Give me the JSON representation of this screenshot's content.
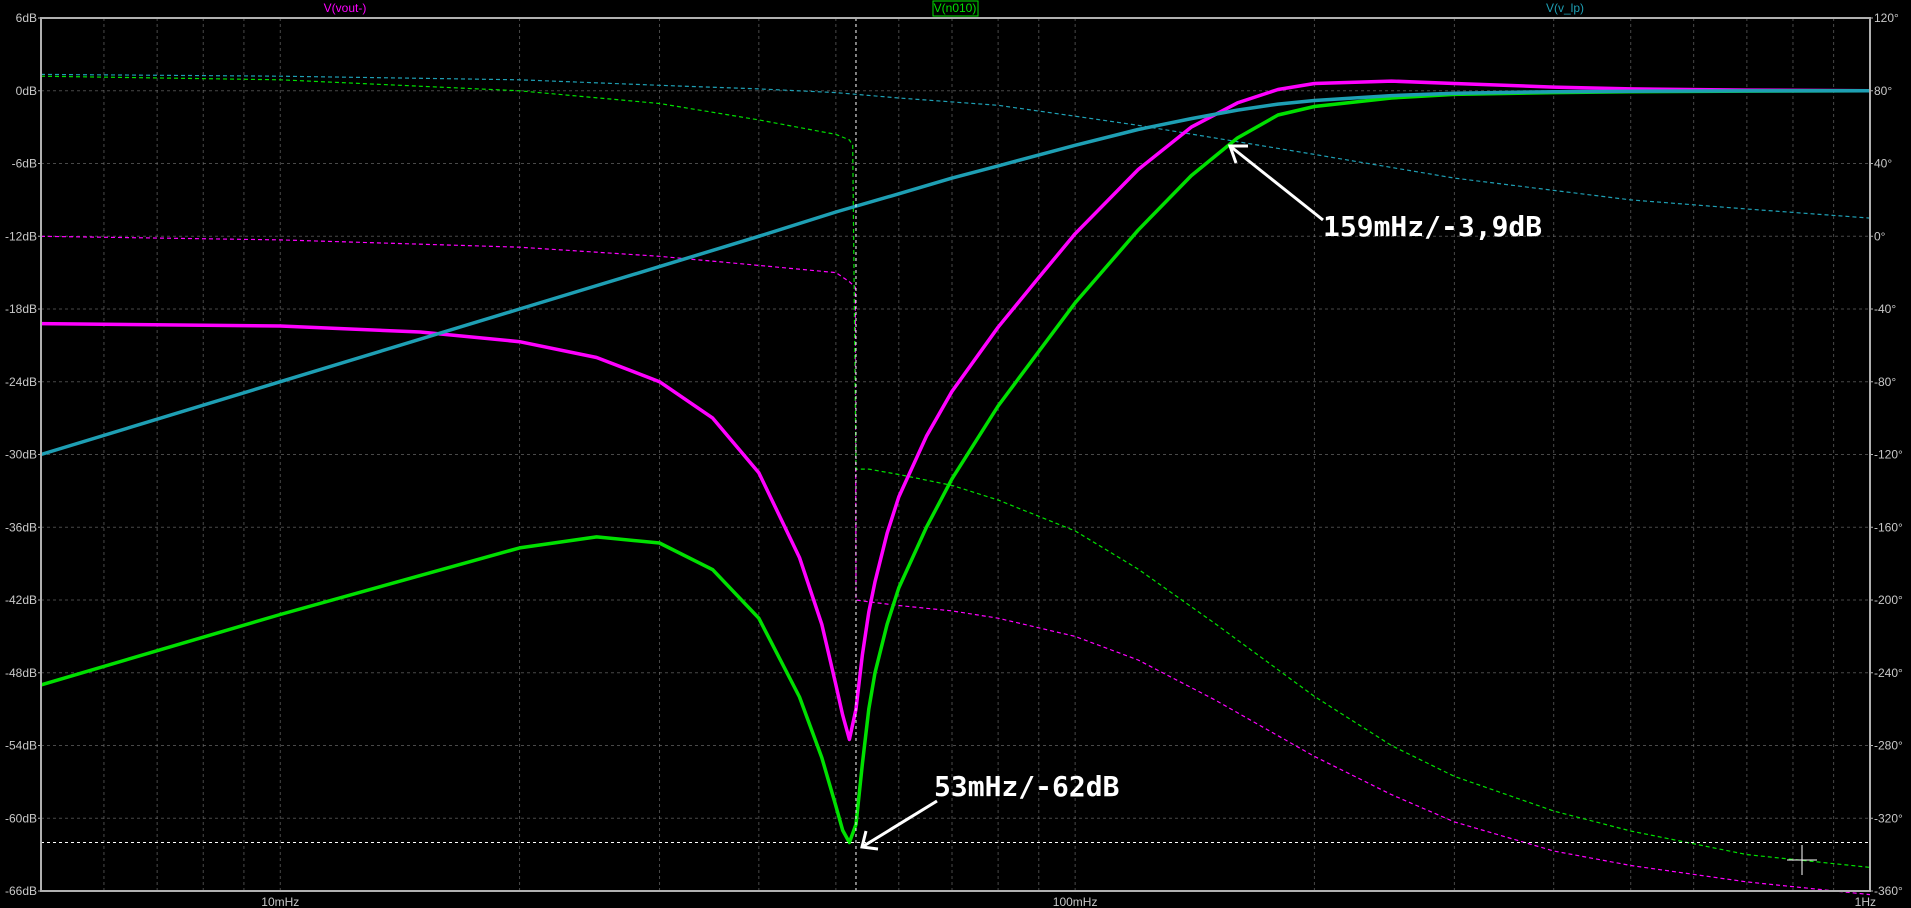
{
  "chart_data": {
    "type": "line",
    "title": "",
    "x_scale": "log",
    "x_range_hz": [
      0.005,
      1
    ],
    "y_left": {
      "unit": "dB",
      "range": [
        -66,
        6
      ],
      "step": 6
    },
    "y_right": {
      "unit": "°",
      "range": [
        -360,
        120
      ],
      "step": 40
    },
    "x_tick_labels": [
      "10mHz",
      "100mHz",
      "1Hz"
    ],
    "y_left_tick_labels": [
      "6dB",
      "0dB",
      "-6dB",
      "-12dB",
      "-18dB",
      "-24dB",
      "-30dB",
      "-36dB",
      "-42dB",
      "-48dB",
      "-54dB",
      "-60dB",
      "-66dB"
    ],
    "y_right_tick_labels": [
      "120°",
      "80°",
      "40°",
      "0°",
      "-40°",
      "-80°",
      "-120°",
      "-160°",
      "-200°",
      "-240°",
      "-280°",
      "-320°",
      "-360°"
    ],
    "grid": true,
    "legend_placement": "top",
    "series": [
      {
        "name": "V(vout-)",
        "color": "#ff00ff",
        "magnitude_db": {
          "x": [
            0.005,
            0.01,
            0.015,
            0.02,
            0.025,
            0.03,
            0.035,
            0.04,
            0.045,
            0.048,
            0.05,
            0.051,
            0.052,
            0.053,
            0.054,
            0.055,
            0.056,
            0.058,
            0.06,
            0.065,
            0.07,
            0.08,
            0.09,
            0.1,
            0.12,
            0.14,
            0.16,
            0.18,
            0.2,
            0.25,
            0.3,
            0.4,
            0.5,
            0.7,
            1.0
          ],
          "y": [
            -19.2,
            -19.4,
            -19.9,
            -20.7,
            -22.0,
            -24.0,
            -27.0,
            -31.5,
            -38.5,
            -44.0,
            -49.0,
            -51.5,
            -53.5,
            -51.0,
            -46.5,
            -43.0,
            -40.5,
            -36.5,
            -33.5,
            -28.5,
            -24.8,
            -19.5,
            -15.4,
            -11.8,
            -6.5,
            -3.0,
            -1.0,
            0.1,
            0.6,
            0.8,
            0.6,
            0.3,
            0.15,
            0.05,
            0.0
          ]
        },
        "phase_deg": {
          "x": [
            0.005,
            0.01,
            0.02,
            0.03,
            0.04,
            0.05,
            0.052,
            0.0529,
            0.053,
            0.055,
            0.06,
            0.07,
            0.08,
            0.1,
            0.12,
            0.15,
            0.2,
            0.25,
            0.3,
            0.4,
            0.5,
            0.7,
            1.0
          ],
          "y": [
            0,
            -2,
            -6,
            -11,
            -16,
            -20,
            -25,
            -28,
            -200,
            -201,
            -203,
            -206,
            -210,
            -220,
            -233,
            -255,
            -286,
            -307,
            -322,
            -338,
            -346,
            -355,
            -362
          ]
        }
      },
      {
        "name": "V(n010)",
        "color": "#00e000",
        "magnitude_db": {
          "x": [
            0.005,
            0.01,
            0.02,
            0.025,
            0.03,
            0.035,
            0.04,
            0.045,
            0.048,
            0.05,
            0.051,
            0.052,
            0.053,
            0.054,
            0.055,
            0.056,
            0.058,
            0.06,
            0.065,
            0.07,
            0.08,
            0.09,
            0.1,
            0.12,
            0.14,
            0.16,
            0.18,
            0.2,
            0.25,
            0.3,
            0.4,
            0.5,
            0.7,
            1.0
          ],
          "y": [
            -49.0,
            -43.2,
            -37.7,
            -36.8,
            -37.3,
            -39.5,
            -43.5,
            -50.0,
            -55.0,
            -59.0,
            -61.0,
            -62.0,
            -60.5,
            -55.5,
            -51.0,
            -48.0,
            -44.0,
            -41.0,
            -36.0,
            -32.0,
            -26.0,
            -21.5,
            -17.5,
            -11.5,
            -7.0,
            -3.9,
            -2.0,
            -1.3,
            -0.6,
            -0.3,
            -0.15,
            -0.08,
            -0.03,
            0.0
          ]
        },
        "phase_deg": {
          "x": [
            0.005,
            0.01,
            0.02,
            0.03,
            0.04,
            0.05,
            0.052,
            0.0525,
            0.053,
            0.055,
            0.06,
            0.07,
            0.08,
            0.1,
            0.12,
            0.15,
            0.2,
            0.25,
            0.3,
            0.4,
            0.5,
            0.7,
            1.0
          ],
          "y": [
            88,
            86,
            80,
            73,
            64,
            56,
            53,
            50,
            -128,
            -128,
            -131,
            -137,
            -145,
            -162,
            -183,
            -213,
            -253,
            -280,
            -297,
            -316,
            -327,
            -340,
            -347
          ]
        }
      },
      {
        "name": "V(v_lp)",
        "color": "#1e9fb4",
        "magnitude_db": {
          "x": [
            0.005,
            0.01,
            0.02,
            0.03,
            0.04,
            0.05,
            0.06,
            0.07,
            0.08,
            0.1,
            0.12,
            0.14,
            0.16,
            0.18,
            0.2,
            0.25,
            0.3,
            0.4,
            0.5,
            0.7,
            1.0
          ],
          "y": [
            -30.0,
            -24.0,
            -18.0,
            -14.5,
            -12.0,
            -10.0,
            -8.5,
            -7.2,
            -6.2,
            -4.5,
            -3.2,
            -2.3,
            -1.6,
            -1.1,
            -0.8,
            -0.4,
            -0.2,
            -0.08,
            -0.04,
            -0.01,
            0.0
          ]
        },
        "phase_deg": {
          "x": [
            0.005,
            0.01,
            0.02,
            0.03,
            0.04,
            0.05,
            0.06,
            0.08,
            0.1,
            0.12,
            0.15,
            0.2,
            0.3,
            0.5,
            0.7,
            1.0
          ],
          "y": [
            89,
            88,
            86,
            83,
            81,
            79,
            76,
            72,
            66,
            61,
            54,
            45,
            32,
            20,
            15,
            10
          ]
        }
      }
    ],
    "cursor_hz": 0.053,
    "cursor_db": -62,
    "annotations": [
      {
        "text": "159mHz/-3,9dB",
        "points_to": {
          "x": 0.159,
          "y": -3.9
        }
      },
      {
        "text": "53mHz/-62dB",
        "points_to": {
          "x": 0.053,
          "y": -62
        }
      }
    ]
  }
}
